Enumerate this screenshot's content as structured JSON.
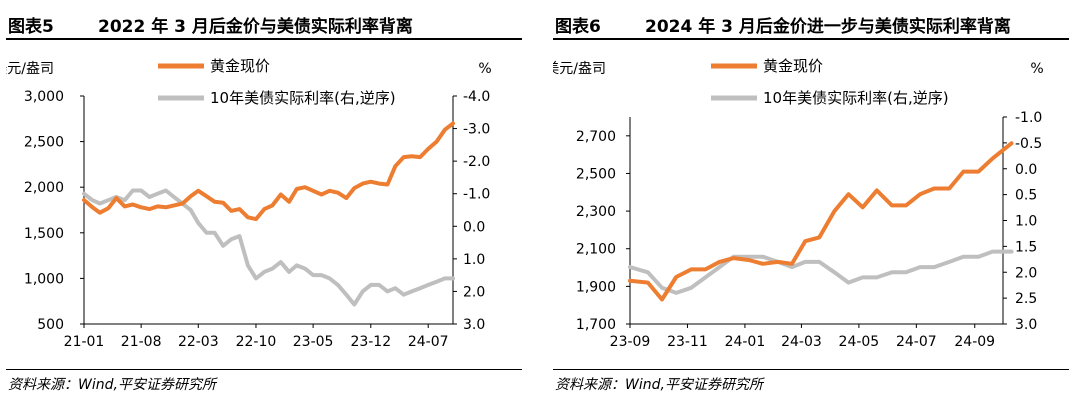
{
  "charts": [
    {
      "fig_no": "图表5",
      "title": "2022 年 3 月后金价与美债实际利率背离",
      "source": "资料来源：Wind,平安证券研究所",
      "left_unit": "美元/盎司",
      "right_unit": "%",
      "legend": [
        "黄金现价",
        "10年美债实际利率(右,逆序)"
      ],
      "colors": {
        "gold": "#ED7D31",
        "yield": "#BFBFBF"
      }
    },
    {
      "fig_no": "图表6",
      "title": "2024 年 3 月后金价进一步与美债实际利率背离",
      "source": "资料来源：Wind,平安证券研究所",
      "left_unit": "美元/盎司",
      "right_unit": "%",
      "legend": [
        "黄金现价",
        "10年美债实际利率(右,逆序)"
      ],
      "colors": {
        "gold": "#ED7D31",
        "yield": "#BFBFBF"
      }
    }
  ],
  "chart_data": [
    {
      "type": "line",
      "title": "2022 年 3 月后金价与美债实际利率背离",
      "x_ticks": [
        "21-01",
        "21-08",
        "22-03",
        "22-10",
        "23-05",
        "23-12",
        "24-07"
      ],
      "x_range": [
        "2021-01",
        "2024-10"
      ],
      "y_left": {
        "label": "美元/盎司",
        "ylim": [
          500,
          3000
        ],
        "ticks": [
          "500",
          "1,000",
          "1,500",
          "2,000",
          "2,500",
          "3,000"
        ],
        "tick_values": [
          500,
          1000,
          1500,
          2000,
          2500,
          3000
        ]
      },
      "y_right": {
        "label": "%",
        "ylim": [
          -4.0,
          3.0
        ],
        "inverted": true,
        "ticks": [
          "-4.0",
          "-3.0",
          "-2.0",
          "-1.0",
          "0.0",
          "1.0",
          "2.0",
          "3.0"
        ],
        "tick_values": [
          -4,
          -3,
          -2,
          -1,
          0,
          1,
          2,
          3
        ]
      },
      "legend_position": "top",
      "series": [
        {
          "name": "黄金现价",
          "axis": "left",
          "x": [
            "2021-01",
            "2021-02",
            "2021-03",
            "2021-04",
            "2021-05",
            "2021-06",
            "2021-07",
            "2021-08",
            "2021-09",
            "2021-10",
            "2021-11",
            "2021-12",
            "2022-01",
            "2022-02",
            "2022-03",
            "2022-04",
            "2022-05",
            "2022-06",
            "2022-07",
            "2022-08",
            "2022-09",
            "2022-10",
            "2022-11",
            "2022-12",
            "2023-01",
            "2023-02",
            "2023-03",
            "2023-04",
            "2023-05",
            "2023-06",
            "2023-07",
            "2023-08",
            "2023-09",
            "2023-10",
            "2023-11",
            "2023-12",
            "2024-01",
            "2024-02",
            "2024-03",
            "2024-04",
            "2024-05",
            "2024-06",
            "2024-07",
            "2024-08",
            "2024-09",
            "2024-10"
          ],
          "values": [
            1860,
            1780,
            1720,
            1770,
            1880,
            1790,
            1810,
            1780,
            1760,
            1790,
            1780,
            1800,
            1820,
            1900,
            1960,
            1900,
            1840,
            1830,
            1740,
            1760,
            1670,
            1650,
            1760,
            1800,
            1920,
            1840,
            1980,
            2000,
            1960,
            1920,
            1960,
            1940,
            1880,
            1990,
            2040,
            2060,
            2040,
            2030,
            2230,
            2330,
            2340,
            2330,
            2420,
            2500,
            2630,
            2700
          ]
        },
        {
          "name": "10年美债实际利率(右,逆序)",
          "axis": "right",
          "x": [
            "2021-01",
            "2021-02",
            "2021-03",
            "2021-04",
            "2021-05",
            "2021-06",
            "2021-07",
            "2021-08",
            "2021-09",
            "2021-10",
            "2021-11",
            "2021-12",
            "2022-01",
            "2022-02",
            "2022-03",
            "2022-04",
            "2022-05",
            "2022-06",
            "2022-07",
            "2022-08",
            "2022-09",
            "2022-10",
            "2022-11",
            "2022-12",
            "2023-01",
            "2023-02",
            "2023-03",
            "2023-04",
            "2023-05",
            "2023-06",
            "2023-07",
            "2023-08",
            "2023-09",
            "2023-10",
            "2023-11",
            "2023-12",
            "2024-01",
            "2024-02",
            "2024-03",
            "2024-04",
            "2024-05",
            "2024-06",
            "2024-07",
            "2024-08",
            "2024-09",
            "2024-10"
          ],
          "values": [
            -1.0,
            -0.8,
            -0.7,
            -0.8,
            -0.9,
            -0.8,
            -1.1,
            -1.1,
            -0.9,
            -1.0,
            -1.1,
            -0.9,
            -0.7,
            -0.5,
            -0.1,
            0.2,
            0.2,
            0.6,
            0.4,
            0.3,
            1.2,
            1.6,
            1.4,
            1.3,
            1.1,
            1.4,
            1.2,
            1.3,
            1.5,
            1.5,
            1.6,
            1.8,
            2.1,
            2.4,
            2.0,
            1.8,
            1.8,
            2.0,
            1.9,
            2.1,
            2.0,
            1.9,
            1.8,
            1.7,
            1.6,
            1.6
          ]
        }
      ]
    },
    {
      "type": "line",
      "title": "2024 年 3 月后金价进一步与美债实际利率背离",
      "x_ticks": [
        "23-09",
        "23-11",
        "24-01",
        "24-03",
        "24-05",
        "24-07",
        "24-09"
      ],
      "x_range": [
        "2023-09",
        "2024-10"
      ],
      "y_left": {
        "label": "美元/盎司",
        "ylim": [
          1700,
          2800
        ],
        "ticks": [
          "1,700",
          "1,900",
          "2,100",
          "2,300",
          "2,500",
          "2,700"
        ],
        "tick_values": [
          1700,
          1900,
          2100,
          2300,
          2500,
          2700
        ]
      },
      "y_right": {
        "label": "%",
        "ylim": [
          -1.0,
          3.0
        ],
        "inverted": true,
        "ticks": [
          "-1.0",
          "-0.5",
          "0.0",
          "0.5",
          "1.0",
          "1.5",
          "2.0",
          "2.5",
          "3.0"
        ],
        "tick_values": [
          -1.0,
          -0.5,
          0.0,
          0.5,
          1.0,
          1.5,
          2.0,
          2.5,
          3.0
        ]
      },
      "legend_position": "top",
      "series": [
        {
          "name": "黄金现价",
          "axis": "left",
          "x": [
            "2023-09-01",
            "2023-09-20",
            "2023-10-05",
            "2023-10-20",
            "2023-11-05",
            "2023-11-20",
            "2023-12-05",
            "2023-12-20",
            "2024-01-05",
            "2024-01-20",
            "2024-02-05",
            "2024-02-20",
            "2024-03-05",
            "2024-03-20",
            "2024-04-05",
            "2024-04-20",
            "2024-05-05",
            "2024-05-20",
            "2024-06-05",
            "2024-06-20",
            "2024-07-05",
            "2024-07-20",
            "2024-08-05",
            "2024-08-20",
            "2024-09-05",
            "2024-09-20",
            "2024-10-05",
            "2024-10-10"
          ],
          "values": [
            1930,
            1920,
            1830,
            1950,
            1990,
            1990,
            2030,
            2050,
            2040,
            2020,
            2030,
            2020,
            2140,
            2160,
            2300,
            2390,
            2320,
            2410,
            2330,
            2330,
            2390,
            2420,
            2420,
            2510,
            2510,
            2580,
            2640,
            2660
          ]
        },
        {
          "name": "10年美债实际利率(右,逆序)",
          "axis": "right",
          "x": [
            "2023-09-01",
            "2023-09-20",
            "2023-10-05",
            "2023-10-20",
            "2023-11-05",
            "2023-11-20",
            "2023-12-05",
            "2023-12-20",
            "2024-01-05",
            "2024-01-20",
            "2024-02-05",
            "2024-02-20",
            "2024-03-05",
            "2024-03-20",
            "2024-04-05",
            "2024-04-20",
            "2024-05-05",
            "2024-05-20",
            "2024-06-05",
            "2024-06-20",
            "2024-07-05",
            "2024-07-20",
            "2024-08-05",
            "2024-08-20",
            "2024-09-05",
            "2024-09-20",
            "2024-10-05",
            "2024-10-10"
          ],
          "values": [
            1.9,
            2.0,
            2.3,
            2.4,
            2.3,
            2.1,
            1.9,
            1.7,
            1.7,
            1.7,
            1.8,
            1.9,
            1.8,
            1.8,
            2.0,
            2.2,
            2.1,
            2.1,
            2.0,
            2.0,
            1.9,
            1.9,
            1.8,
            1.7,
            1.7,
            1.6,
            1.6,
            1.6
          ]
        }
      ]
    }
  ]
}
